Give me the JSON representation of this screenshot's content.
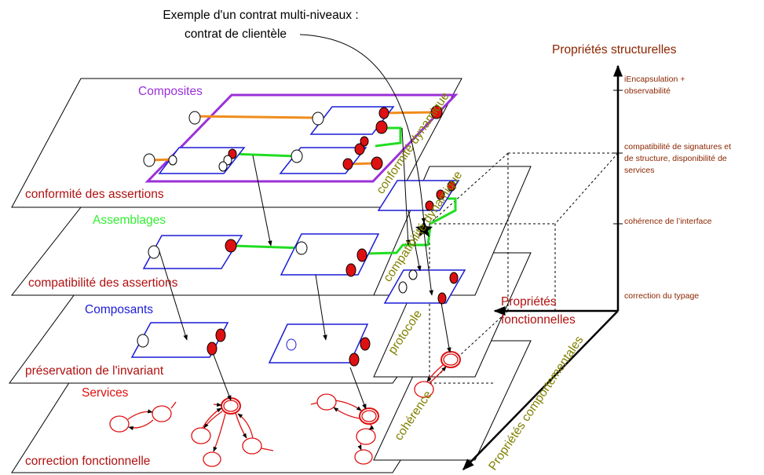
{
  "title": {
    "line1": "Exemple d'un contrat multi-niveaux :",
    "line2": "contrat de clientèle"
  },
  "levels": {
    "composites": {
      "name": "Composites",
      "contract": "conformité des assertions"
    },
    "assemblages": {
      "name": "Assemblages",
      "contract": "compatibilité des assertions"
    },
    "composants": {
      "name": "Composants",
      "contract": "préservation de l'invariant"
    },
    "services": {
      "name": "Services",
      "contract": "correction fonctionnelle"
    }
  },
  "diagonal_labels": {
    "conformite_dynamique": "conformité dynamique",
    "compatibilite_dynamique": "compatibilité dynamique",
    "protocole": "protocole",
    "coherence": "cohérence"
  },
  "axes": {
    "structural": {
      "title": "Propriétés structurelles",
      "ticks": [
        [
          "iEncapsulation +",
          "observabilité"
        ],
        [
          "compatibilité de signatures et",
          "de structure, disponibilité de",
          "services"
        ],
        [
          "cohérence de l’interface"
        ],
        [
          "correction du typage"
        ]
      ]
    },
    "functional": {
      "title_line1": "Propriétés",
      "title_line2": "fonctionnelles"
    },
    "behavioral": {
      "title": "Propriétés comportementales"
    }
  },
  "colors": {
    "composites": "#9b30d9",
    "assemblages": "#33ee33",
    "composants": "#1c1cd6",
    "contract": "#b01010",
    "diagonal": "#808000",
    "axis_title": "#8b2500",
    "link_orange": "#f08c1c",
    "link_green": "#22dd22",
    "port_red": "#dd1111",
    "service_red": "#e01010"
  }
}
